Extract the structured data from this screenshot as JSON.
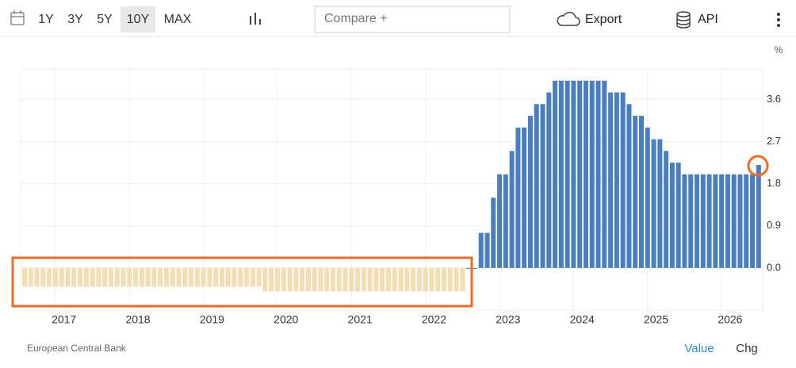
{
  "toolbar": {
    "ranges": [
      "1Y",
      "3Y",
      "5Y",
      "10Y",
      "MAX"
    ],
    "active_range": "10Y",
    "compare": "Compare +",
    "export": "Export",
    "api": "API"
  },
  "footer": {
    "source": "European Central Bank",
    "tabs": [
      "Value",
      "Chg"
    ],
    "active_tab": "Value"
  },
  "chart_data": {
    "type": "bar",
    "unit": "%",
    "categories": [
      null,
      null,
      null,
      null,
      null,
      null,
      "2017",
      null,
      null,
      null,
      null,
      null,
      null,
      null,
      null,
      null,
      null,
      null,
      "2018",
      null,
      null,
      null,
      null,
      null,
      null,
      null,
      null,
      null,
      null,
      null,
      "2019",
      null,
      null,
      null,
      null,
      null,
      null,
      null,
      null,
      null,
      null,
      null,
      "2020",
      null,
      null,
      null,
      null,
      null,
      null,
      null,
      null,
      null,
      null,
      null,
      "2021",
      null,
      null,
      null,
      null,
      null,
      null,
      null,
      null,
      null,
      null,
      null,
      "2022",
      null,
      null,
      null,
      null,
      null,
      null,
      null,
      null,
      null,
      null,
      null,
      "2023",
      null,
      null,
      null,
      null,
      null,
      null,
      null,
      null,
      null,
      null,
      null,
      "2024",
      null,
      null,
      null,
      null,
      null,
      null,
      null,
      null,
      null,
      null,
      null,
      "2025",
      null,
      null,
      null,
      null,
      null,
      null,
      null,
      null,
      null,
      null,
      null,
      "2026",
      null,
      null,
      null,
      null,
      null
    ],
    "values": [
      -0.4,
      -0.4,
      -0.4,
      -0.4,
      -0.4,
      -0.4,
      -0.4,
      -0.4,
      -0.4,
      -0.4,
      -0.4,
      -0.4,
      -0.4,
      -0.4,
      -0.4,
      -0.4,
      -0.4,
      -0.4,
      -0.4,
      -0.4,
      -0.4,
      -0.4,
      -0.4,
      -0.4,
      -0.4,
      -0.4,
      -0.4,
      -0.4,
      -0.4,
      -0.4,
      -0.4,
      -0.4,
      -0.4,
      -0.4,
      -0.4,
      -0.4,
      -0.4,
      -0.4,
      -0.4,
      -0.5,
      -0.5,
      -0.5,
      -0.5,
      -0.5,
      -0.5,
      -0.5,
      -0.5,
      -0.5,
      -0.5,
      -0.5,
      -0.5,
      -0.5,
      -0.5,
      -0.5,
      -0.5,
      -0.5,
      -0.5,
      -0.5,
      -0.5,
      -0.5,
      -0.5,
      -0.5,
      -0.5,
      -0.5,
      -0.5,
      -0.5,
      -0.5,
      -0.5,
      -0.5,
      -0.5,
      -0.5,
      -0.5,
      0,
      0,
      0.75,
      0.75,
      1.5,
      2.0,
      2.0,
      2.5,
      3.0,
      3.0,
      3.25,
      3.5,
      3.5,
      3.75,
      4.0,
      4.0,
      4.0,
      4.0,
      4.0,
      4.0,
      4.0,
      4.0,
      4.0,
      3.75,
      3.75,
      3.75,
      3.5,
      3.25,
      3.25,
      3.0,
      2.75,
      2.75,
      2.5,
      2.25,
      2.25,
      2.0,
      2.0,
      2.0,
      2.0,
      2.0,
      2.0,
      2.0,
      2.0,
      2.0,
      2.0,
      2.0,
      2.0,
      2.2
    ],
    "color": "#4a7ebf",
    "negative_color": "#f3ddb3",
    "ylim": [
      -0.9,
      4.25
    ],
    "yticks": [
      {
        "value": 0,
        "label": "0.0"
      },
      0.9,
      1.8,
      2.7,
      3.6
    ],
    "grid": true
  }
}
